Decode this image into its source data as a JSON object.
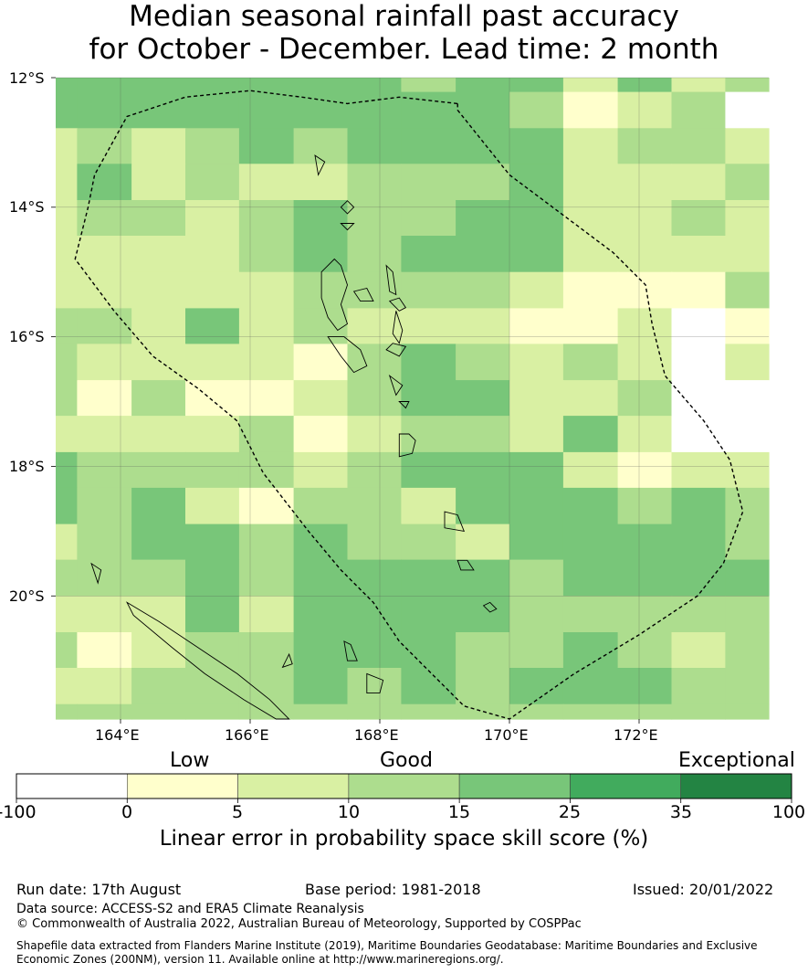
{
  "title_line1": "Median seasonal rainfall past accuracy",
  "title_line2": "for October - December. Lead time: 2 month",
  "map": {
    "lat_labels": [
      "12°S",
      "14°S",
      "16°S",
      "18°S",
      "20°S"
    ],
    "lon_labels": [
      "164°E",
      "166°E",
      "168°E",
      "170°E",
      "172°E"
    ],
    "lon_range": [
      163.0,
      174.0
    ],
    "lat_range": [
      -21.9,
      -12.0
    ],
    "cell_lon_edges": [
      163.0,
      163.33,
      164.17,
      165.0,
      165.83,
      166.67,
      167.5,
      168.33,
      169.17,
      170.0,
      170.83,
      171.67,
      172.5,
      173.33,
      174.0
    ],
    "cell_lat_edges": [
      -12.0,
      -12.22,
      -12.78,
      -13.33,
      -13.89,
      -14.44,
      -15.0,
      -15.56,
      -16.11,
      -16.67,
      -17.22,
      -17.78,
      -18.33,
      -18.89,
      -19.44,
      -20.0,
      -20.56,
      -21.11,
      -21.67,
      -21.9
    ],
    "skill_classes": [
      [
        4,
        4,
        4,
        4,
        4,
        4,
        4,
        3,
        4,
        4,
        2,
        4,
        2,
        3
      ],
      [
        4,
        4,
        4,
        4,
        4,
        4,
        4,
        4,
        4,
        3,
        1,
        2,
        3,
        0
      ],
      [
        2,
        3,
        2,
        3,
        4,
        3,
        4,
        4,
        4,
        4,
        2,
        3,
        3,
        2
      ],
      [
        2,
        4,
        2,
        3,
        2,
        2,
        3,
        3,
        3,
        4,
        2,
        2,
        2,
        3
      ],
      [
        2,
        3,
        3,
        2,
        3,
        4,
        3,
        3,
        4,
        4,
        2,
        2,
        3,
        2
      ],
      [
        2,
        2,
        2,
        2,
        3,
        4,
        3,
        4,
        4,
        4,
        2,
        2,
        2,
        2
      ],
      [
        2,
        2,
        2,
        2,
        2,
        3,
        3,
        3,
        3,
        2,
        1,
        1,
        1,
        3
      ],
      [
        3,
        3,
        2,
        4,
        2,
        3,
        2,
        2,
        2,
        1,
        1,
        2,
        0,
        1
      ],
      [
        3,
        2,
        2,
        2,
        2,
        1,
        3,
        4,
        3,
        2,
        3,
        2,
        0,
        2
      ],
      [
        3,
        1,
        3,
        1,
        1,
        2,
        3,
        4,
        4,
        2,
        2,
        3,
        0,
        0
      ],
      [
        2,
        2,
        2,
        2,
        3,
        1,
        2,
        3,
        3,
        2,
        4,
        2,
        0,
        0
      ],
      [
        4,
        3,
        3,
        3,
        3,
        2,
        3,
        4,
        4,
        4,
        2,
        1,
        2,
        2
      ],
      [
        4,
        3,
        4,
        2,
        1,
        3,
        3,
        2,
        4,
        4,
        4,
        3,
        4,
        3
      ],
      [
        2,
        3,
        4,
        4,
        3,
        4,
        3,
        3,
        2,
        4,
        4,
        4,
        4,
        3
      ],
      [
        3,
        3,
        3,
        4,
        3,
        4,
        4,
        4,
        4,
        3,
        4,
        4,
        4,
        4
      ],
      [
        2,
        2,
        2,
        4,
        2,
        4,
        4,
        4,
        4,
        3,
        3,
        3,
        3,
        3
      ],
      [
        3,
        1,
        2,
        3,
        3,
        4,
        4,
        4,
        3,
        3,
        4,
        3,
        2,
        3
      ],
      [
        2,
        2,
        3,
        3,
        3,
        4,
        3,
        4,
        3,
        4,
        4,
        4,
        3,
        3
      ],
      [
        3,
        3,
        3,
        3,
        3,
        3,
        3,
        3,
        3,
        3,
        3,
        3,
        3,
        3
      ]
    ],
    "eez_boundary": [
      [
        169.2,
        -12.4
      ],
      [
        169.2,
        -12.5
      ],
      [
        169.6,
        -13.0
      ],
      [
        170.0,
        -13.5
      ],
      [
        170.8,
        -14.1
      ],
      [
        171.6,
        -14.7
      ],
      [
        172.1,
        -15.2
      ],
      [
        172.2,
        -15.8
      ],
      [
        172.4,
        -16.6
      ],
      [
        173.0,
        -17.3
      ],
      [
        173.4,
        -17.9
      ],
      [
        173.6,
        -18.7
      ],
      [
        173.3,
        -19.5
      ],
      [
        172.9,
        -20.0
      ],
      [
        172.0,
        -20.6
      ],
      [
        171.0,
        -21.2
      ],
      [
        170.0,
        -21.9
      ],
      [
        169.3,
        -21.7
      ],
      [
        168.8,
        -21.2
      ],
      [
        168.3,
        -20.7
      ],
      [
        167.9,
        -20.1
      ],
      [
        167.4,
        -19.6
      ],
      [
        166.9,
        -19.0
      ],
      [
        166.2,
        -18.1
      ],
      [
        165.8,
        -17.3
      ],
      [
        165.2,
        -16.8
      ],
      [
        164.5,
        -16.3
      ],
      [
        163.9,
        -15.6
      ],
      [
        163.3,
        -14.8
      ],
      [
        163.5,
        -14.0
      ],
      [
        163.6,
        -13.5
      ],
      [
        164.1,
        -12.6
      ],
      [
        165.0,
        -12.3
      ],
      [
        166.0,
        -12.2
      ],
      [
        166.8,
        -12.3
      ],
      [
        167.5,
        -12.4
      ],
      [
        168.3,
        -12.3
      ],
      [
        169.2,
        -12.4
      ]
    ],
    "islands": [
      [
        [
          167.3,
          -14.8
        ],
        [
          167.1,
          -15.0
        ],
        [
          167.1,
          -15.4
        ],
        [
          167.2,
          -15.7
        ],
        [
          167.35,
          -15.9
        ],
        [
          167.5,
          -15.8
        ],
        [
          167.4,
          -15.5
        ],
        [
          167.5,
          -15.2
        ],
        [
          167.4,
          -14.9
        ]
      ],
      [
        [
          167.6,
          -15.3
        ],
        [
          167.7,
          -15.45
        ],
        [
          167.9,
          -15.45
        ],
        [
          167.8,
          -15.25
        ]
      ],
      [
        [
          168.15,
          -15.45
        ],
        [
          168.3,
          -15.6
        ],
        [
          168.4,
          -15.55
        ],
        [
          168.3,
          -15.4
        ]
      ],
      [
        [
          168.25,
          -15.6
        ],
        [
          168.2,
          -15.95
        ],
        [
          168.3,
          -16.1
        ],
        [
          168.35,
          -15.9
        ]
      ],
      [
        [
          168.1,
          -14.9
        ],
        [
          168.15,
          -15.3
        ],
        [
          168.25,
          -15.35
        ],
        [
          168.2,
          -15.0
        ]
      ],
      [
        [
          167.2,
          -16.0
        ],
        [
          167.4,
          -16.3
        ],
        [
          167.6,
          -16.55
        ],
        [
          167.8,
          -16.45
        ],
        [
          167.7,
          -16.2
        ],
        [
          167.45,
          -16.0
        ]
      ],
      [
        [
          168.1,
          -16.2
        ],
        [
          168.3,
          -16.3
        ],
        [
          168.4,
          -16.15
        ],
        [
          168.2,
          -16.1
        ]
      ],
      [
        [
          168.15,
          -16.6
        ],
        [
          168.25,
          -16.9
        ],
        [
          168.35,
          -16.75
        ]
      ],
      [
        [
          168.3,
          -17.0
        ],
        [
          168.4,
          -17.1
        ],
        [
          168.45,
          -17.0
        ]
      ],
      [
        [
          168.3,
          -17.5
        ],
        [
          168.3,
          -17.85
        ],
        [
          168.5,
          -17.8
        ],
        [
          168.55,
          -17.6
        ],
        [
          168.45,
          -17.5
        ]
      ],
      [
        [
          169.0,
          -18.7
        ],
        [
          169.0,
          -18.95
        ],
        [
          169.3,
          -19.0
        ],
        [
          169.2,
          -18.75
        ]
      ],
      [
        [
          169.2,
          -19.45
        ],
        [
          169.25,
          -19.6
        ],
        [
          169.45,
          -19.6
        ],
        [
          169.35,
          -19.45
        ]
      ],
      [
        [
          169.6,
          -20.15
        ],
        [
          169.7,
          -20.25
        ],
        [
          169.8,
          -20.2
        ],
        [
          169.7,
          -20.1
        ]
      ],
      [
        [
          167.45,
          -20.7
        ],
        [
          167.5,
          -21.0
        ],
        [
          167.65,
          -21.0
        ],
        [
          167.55,
          -20.75
        ]
      ],
      [
        [
          166.6,
          -20.9
        ],
        [
          166.5,
          -21.1
        ],
        [
          166.65,
          -21.05
        ]
      ],
      [
        [
          167.8,
          -21.2
        ],
        [
          167.8,
          -21.5
        ],
        [
          168.0,
          -21.5
        ],
        [
          168.05,
          -21.3
        ]
      ],
      [
        [
          167.0,
          -13.2
        ],
        [
          167.05,
          -13.5
        ],
        [
          167.15,
          -13.3
        ]
      ],
      [
        [
          167.4,
          -14.0
        ],
        [
          167.5,
          -14.1
        ],
        [
          167.6,
          -14.0
        ],
        [
          167.5,
          -13.9
        ]
      ],
      [
        [
          167.4,
          -14.25
        ],
        [
          167.5,
          -14.35
        ],
        [
          167.6,
          -14.25
        ]
      ],
      [
        [
          164.1,
          -20.1
        ],
        [
          164.6,
          -20.4
        ],
        [
          165.2,
          -20.8
        ],
        [
          165.8,
          -21.2
        ],
        [
          166.3,
          -21.6
        ],
        [
          166.6,
          -21.9
        ],
        [
          166.4,
          -21.9
        ],
        [
          165.9,
          -21.6
        ],
        [
          165.3,
          -21.2
        ],
        [
          164.8,
          -20.8
        ],
        [
          164.2,
          -20.3
        ]
      ],
      [
        [
          163.55,
          -19.5
        ],
        [
          163.65,
          -19.8
        ],
        [
          163.7,
          -19.6
        ]
      ]
    ]
  },
  "colorbar": {
    "categories": [
      "Low",
      "Good",
      "Exceptional"
    ],
    "ticks": [
      "-100",
      "0",
      "5",
      "10",
      "15",
      "25",
      "35",
      "100"
    ],
    "colors": [
      "#ffffff",
      "#ffffcc",
      "#d9f0a3",
      "#addd8e",
      "#78c679",
      "#41ab5d",
      "#238443"
    ],
    "label": "Linear error in probability space skill score (%)"
  },
  "footer": {
    "run_date": "Run date: 17th August",
    "base_period": "Base period: 1981-2018",
    "issued": "Issued: 20/01/2022",
    "data_source": "Data source: ACCESS-S2 and ERA5 Climate Reanalysis",
    "copyright": "© Commonwealth of Australia 2022, Australian Bureau of Meteorology, Supported by COSPPac",
    "shapefile_note": "Shapefile data extracted from Flanders Marine Institute (2019), Maritime Boundaries Geodatabase: Maritime Boundaries and Exclusive Economic Zones (200NM), version 11. Available online at http://www.marineregions.org/."
  }
}
